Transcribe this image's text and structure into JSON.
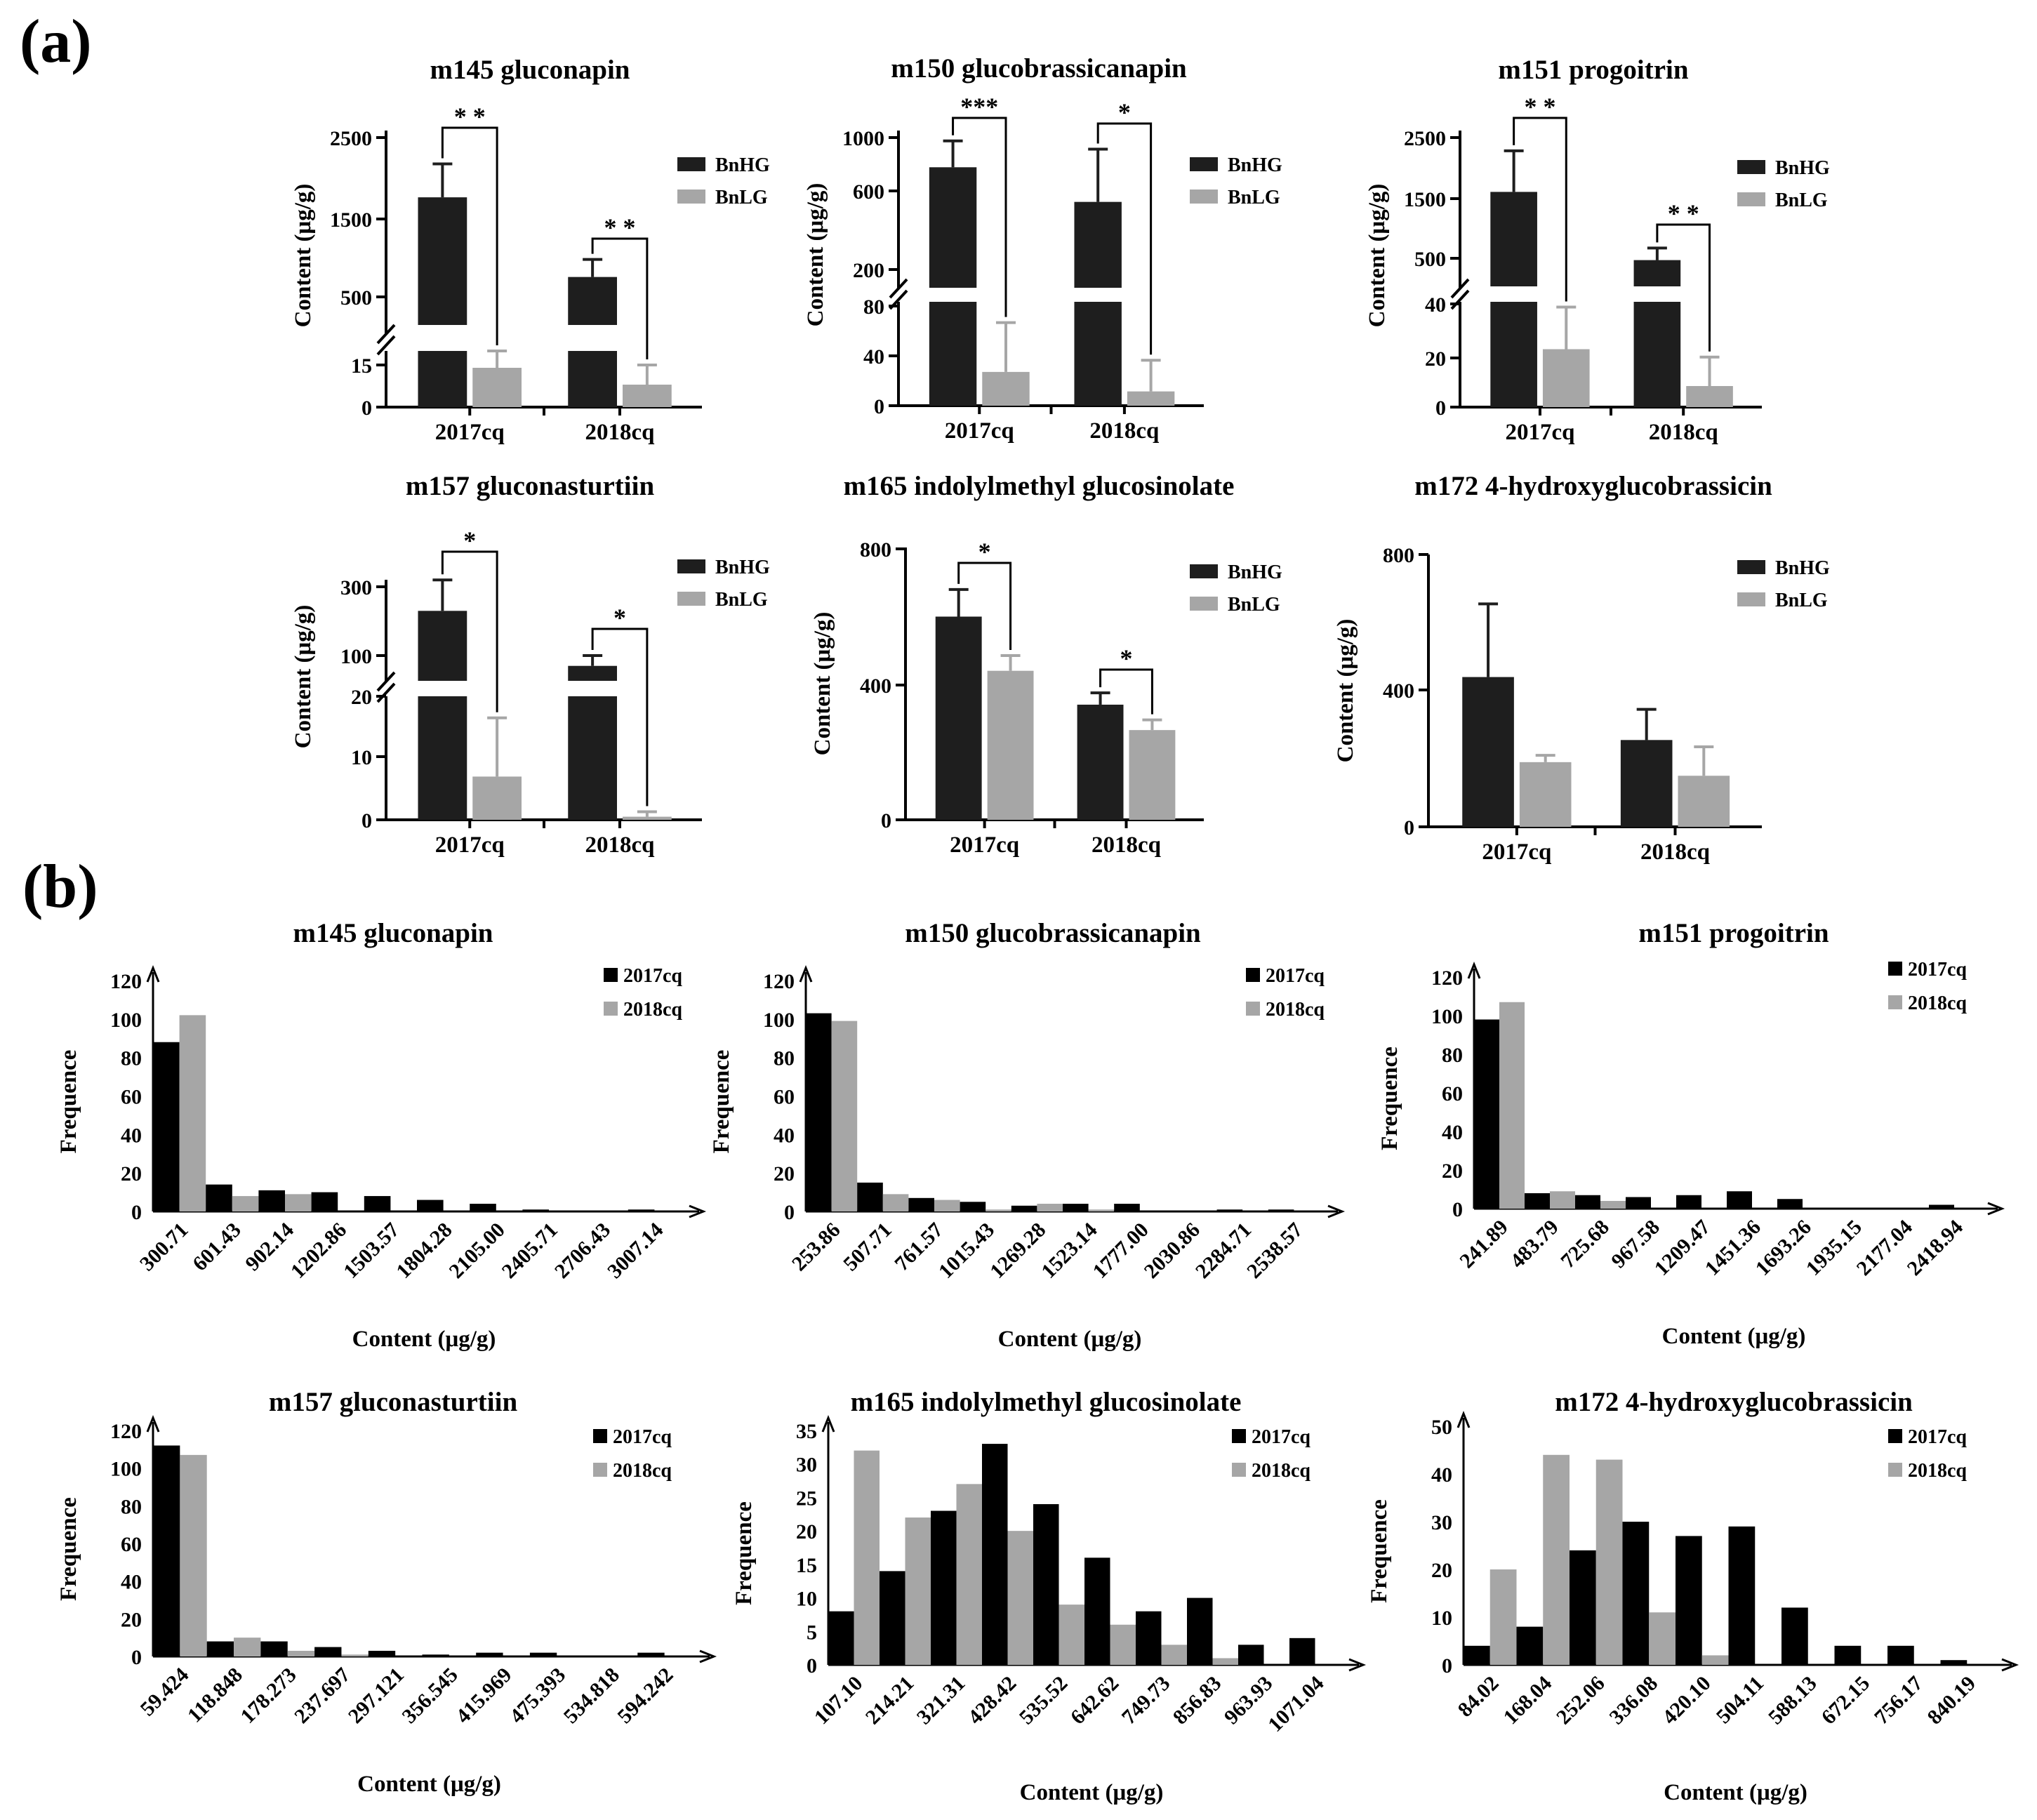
{
  "figure": {
    "panel_a_label": "(a)",
    "panel_b_label": "(b)",
    "colors": {
      "BnHG": "#1e1e1e",
      "BnLG": "#a6a6a6",
      "y2017": "#000000",
      "y2018": "#a6a6a6",
      "axis": "#000000"
    }
  },
  "chart_data": [
    {
      "type": "bar",
      "panel": "a",
      "title": "m145 gluconapin",
      "ylabel": "Content (μg/g)",
      "categories": [
        "2017cq",
        "2018cq"
      ],
      "legend": [
        "BnHG",
        "BnLG"
      ],
      "series": [
        {
          "name": "BnHG",
          "values": [
            1750,
            750
          ],
          "errors": [
            420,
            220
          ]
        },
        {
          "name": "BnLG",
          "values": [
            14,
            8
          ],
          "errors": [
            16,
            7
          ]
        }
      ],
      "y_break": {
        "lower": [
          0,
          20
        ],
        "upper": [
          0,
          2500
        ]
      },
      "y_ticks_lower": [
        "0",
        "15"
      ],
      "y_ticks_upper": [
        "500",
        "1500",
        "2500"
      ],
      "significance": [
        "* *",
        "* *"
      ]
    },
    {
      "type": "bar",
      "panel": "a",
      "title": "m150 glucobrassicanapin",
      "ylabel": "Content (μg/g)",
      "categories": [
        "2017cq",
        "2018cq"
      ],
      "legend": [
        "BnHG",
        "BnLG"
      ],
      "series": [
        {
          "name": "BnHG",
          "values": [
            820,
            610
          ],
          "errors": [
            160,
            320
          ]
        },
        {
          "name": "BnLG",
          "values": [
            26,
            11
          ],
          "errors": [
            38,
            24
          ]
        }
      ],
      "y_break": {
        "lower": [
          0,
          80
        ],
        "upper": [
          200,
          1000
        ]
      },
      "y_ticks_lower": [
        "0",
        "40",
        "80"
      ],
      "y_ticks_upper": [
        "200",
        "600",
        "1000"
      ],
      "significance": [
        "***",
        "*"
      ]
    },
    {
      "type": "bar",
      "panel": "a",
      "title": "m151 progoitrin",
      "ylabel": "Content (μg/g)",
      "categories": [
        "2017cq",
        "2018cq"
      ],
      "legend": [
        "BnHG",
        "BnLG"
      ],
      "series": [
        {
          "name": "BnHG",
          "values": [
            1600,
            470
          ],
          "errors": [
            680,
            200
          ]
        },
        {
          "name": "BnLG",
          "values": [
            22,
            8
          ],
          "errors": [
            16,
            11
          ]
        }
      ],
      "y_break": {
        "lower": [
          0,
          40
        ],
        "upper": [
          0,
          2500
        ]
      },
      "y_ticks_lower": [
        "0",
        "20",
        "40"
      ],
      "y_ticks_upper": [
        "500",
        "1500",
        "2500"
      ],
      "significance": [
        "* *",
        "* *"
      ]
    },
    {
      "type": "bar",
      "panel": "a",
      "title": "m157 gluconasturtiin",
      "ylabel": "Content (μg/g)",
      "categories": [
        "2017cq",
        "2018cq"
      ],
      "legend": [
        "BnHG",
        "BnLG"
      ],
      "series": [
        {
          "name": "BnHG",
          "values": [
            230,
            70
          ],
          "errors": [
            90,
            30
          ]
        },
        {
          "name": "BnLG",
          "values": [
            7,
            0.5
          ],
          "errors": [
            9.5,
            0.8
          ]
        }
      ],
      "y_break": {
        "lower": [
          0,
          20
        ],
        "upper": [
          0,
          350
        ]
      },
      "y_ticks_lower": [
        "0",
        "10",
        "20"
      ],
      "y_ticks_upper": [
        "100",
        "300"
      ],
      "significance": [
        "*",
        "*"
      ]
    },
    {
      "type": "bar",
      "panel": "a",
      "title": "m165 indolylmethyl glucosinolate",
      "ylabel": "Content (μg/g)",
      "categories": [
        "2017cq",
        "2018cq"
      ],
      "legend": [
        "BnHG",
        "BnLG"
      ],
      "series": [
        {
          "name": "BnHG",
          "values": [
            600,
            340
          ],
          "errors": [
            80,
            35
          ]
        },
        {
          "name": "BnLG",
          "values": [
            440,
            265
          ],
          "errors": [
            45,
            30
          ]
        }
      ],
      "ylim": [
        0,
        800
      ],
      "y_ticks": [
        "0",
        "400",
        "800"
      ],
      "significance": [
        "*",
        "*"
      ]
    },
    {
      "type": "bar",
      "panel": "a",
      "title": "m172 4-hydroxyglucobrassicin",
      "ylabel": "Content (μg/g)",
      "categories": [
        "2017cq",
        "2018cq"
      ],
      "legend": [
        "BnHG",
        "BnLG"
      ],
      "series": [
        {
          "name": "BnHG",
          "values": [
            440,
            255
          ],
          "errors": [
            215,
            90
          ]
        },
        {
          "name": "BnLG",
          "values": [
            190,
            150
          ],
          "errors": [
            20,
            85
          ]
        }
      ],
      "ylim": [
        0,
        800
      ],
      "y_ticks": [
        "0",
        "400",
        "800"
      ],
      "significance": [
        "",
        ""
      ]
    },
    {
      "type": "bar",
      "panel": "b",
      "title": "m145 gluconapin",
      "xlabel": "Content (μg/g)",
      "ylabel": "Frequence",
      "categories": [
        "300.71",
        "601.43",
        "902.14",
        "1202.86",
        "1503.57",
        "1804.28",
        "2105.00",
        "2405.71",
        "2706.43",
        "3007.14"
      ],
      "legend": [
        "2017cq",
        "2018cq"
      ],
      "series": [
        {
          "name": "2017cq",
          "values": [
            88,
            14,
            11,
            10,
            8,
            6,
            4,
            1,
            0,
            1
          ]
        },
        {
          "name": "2018cq",
          "values": [
            102,
            8,
            9,
            0,
            0,
            0,
            0,
            0,
            0,
            0
          ]
        }
      ],
      "ylim": [
        0,
        120
      ],
      "y_ticks": [
        "0",
        "20",
        "40",
        "60",
        "80",
        "100",
        "120"
      ]
    },
    {
      "type": "bar",
      "panel": "b",
      "title": "m150 glucobrassicanapin",
      "xlabel": "Content (μg/g)",
      "ylabel": "Frequence",
      "categories": [
        "253.86",
        "507.71",
        "761.57",
        "1015.43",
        "1269.28",
        "1523.14",
        "1777.00",
        "2030.86",
        "2284.71",
        "2538.57"
      ],
      "legend": [
        "2017cq",
        "2018cq"
      ],
      "series": [
        {
          "name": "2017cq",
          "values": [
            103,
            15,
            7,
            5,
            3,
            4,
            4,
            0,
            1,
            1
          ]
        },
        {
          "name": "2018cq",
          "values": [
            99,
            9,
            6,
            1,
            4,
            1,
            0,
            0,
            0,
            0
          ]
        }
      ],
      "ylim": [
        0,
        120
      ],
      "y_ticks": [
        "0",
        "20",
        "40",
        "60",
        "80",
        "100",
        "120"
      ]
    },
    {
      "type": "bar",
      "panel": "b",
      "title": "m151 progoitrin",
      "xlabel": "Content (μg/g)",
      "ylabel": "Frequence",
      "categories": [
        "241.89",
        "483.79",
        "725.68",
        "967.58",
        "1209.47",
        "1451.36",
        "1693.26",
        "1935.15",
        "2177.04",
        "2418.94"
      ],
      "legend": [
        "2017cq",
        "2018cq"
      ],
      "series": [
        {
          "name": "2017cq",
          "values": [
            98,
            8,
            7,
            6,
            7,
            9,
            5,
            0,
            0,
            2
          ]
        },
        {
          "name": "2018cq",
          "values": [
            107,
            9,
            4,
            0,
            0,
            0,
            0,
            0,
            0,
            0
          ]
        }
      ],
      "ylim": [
        0,
        120
      ],
      "y_ticks": [
        "0",
        "20",
        "40",
        "60",
        "80",
        "100",
        "120"
      ]
    },
    {
      "type": "bar",
      "panel": "b",
      "title": "m157 gluconasturtiin",
      "xlabel": "Content (μg/g)",
      "ylabel": "Frequence",
      "categories": [
        "59.424",
        "118.848",
        "178.273",
        "237.697",
        "297.121",
        "356.545",
        "415.969",
        "475.393",
        "534.818",
        "594.242"
      ],
      "legend": [
        "2017cq",
        "2018cq"
      ],
      "series": [
        {
          "name": "2017cq",
          "values": [
            112,
            8,
            8,
            5,
            3,
            1,
            2,
            2,
            0,
            2
          ]
        },
        {
          "name": "2018cq",
          "values": [
            107,
            10,
            3,
            1,
            0,
            0,
            0,
            0,
            0,
            0
          ]
        }
      ],
      "ylim": [
        0,
        120
      ],
      "y_ticks": [
        "0",
        "20",
        "40",
        "60",
        "80",
        "100",
        "120"
      ]
    },
    {
      "type": "bar",
      "panel": "b",
      "title": "m165 indolylmethyl glucosinolate",
      "xlabel": "Content (μg/g)",
      "ylabel": "Frequence",
      "categories": [
        "107.10",
        "214.21",
        "321.31",
        "428.42",
        "535.52",
        "642.62",
        "749.73",
        "856.83",
        "963.93",
        "1071.04"
      ],
      "legend": [
        "2017cq",
        "2018cq"
      ],
      "series": [
        {
          "name": "2017cq",
          "values": [
            8,
            14,
            23,
            33,
            24,
            16,
            8,
            10,
            3,
            4
          ]
        },
        {
          "name": "2018cq",
          "values": [
            32,
            22,
            27,
            20,
            9,
            6,
            3,
            1,
            0,
            0
          ]
        }
      ],
      "ylim": [
        0,
        35
      ],
      "y_ticks": [
        "0",
        "5",
        "10",
        "15",
        "20",
        "25",
        "30",
        "35"
      ]
    },
    {
      "type": "bar",
      "panel": "b",
      "title": "m172 4-hydroxyglucobrassicin",
      "xlabel": "Content (μg/g)",
      "ylabel": "Frequence",
      "categories": [
        "84.02",
        "168.04",
        "252.06",
        "336.08",
        "420.10",
        "504.11",
        "588.13",
        "672.15",
        "756.17",
        "840.19"
      ],
      "legend": [
        "2017cq",
        "2018cq"
      ],
      "series": [
        {
          "name": "2017cq",
          "values": [
            4,
            8,
            24,
            30,
            27,
            29,
            12,
            4,
            4,
            1
          ]
        },
        {
          "name": "2018cq",
          "values": [
            20,
            44,
            43,
            11,
            2,
            0,
            0,
            0,
            0,
            0
          ]
        }
      ],
      "ylim": [
        0,
        50
      ],
      "y_ticks": [
        "0",
        "10",
        "20",
        "30",
        "40",
        "50"
      ]
    }
  ]
}
